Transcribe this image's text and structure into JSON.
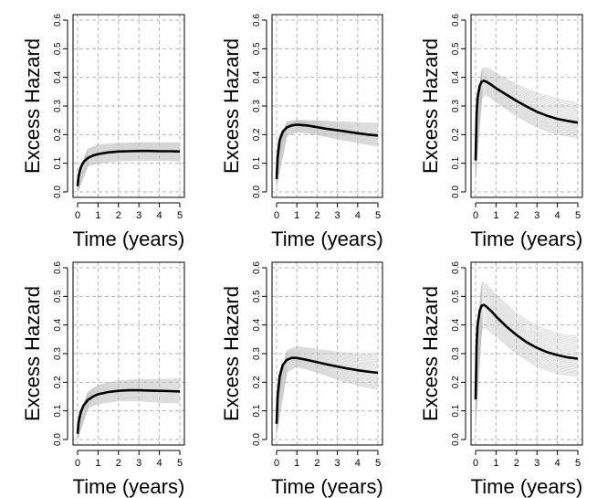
{
  "chart_data": [
    {
      "type": "line",
      "panel": "top-left",
      "xlabel": "Time (years)",
      "ylabel": "Excess Hazard",
      "xlim": [
        0,
        5
      ],
      "ylim": [
        0,
        0.6
      ],
      "x_ticks": [
        "0",
        "1",
        "2",
        "3",
        "4",
        "5"
      ],
      "y_ticks": [
        "0.0",
        "0.1",
        "0.2",
        "0.3",
        "0.4",
        "0.5",
        "0.6"
      ],
      "series": [
        {
          "name": "mean",
          "x": [
            0,
            0.05,
            0.15,
            0.3,
            0.5,
            0.75,
            1,
            1.5,
            2,
            2.5,
            3,
            3.5,
            4,
            4.5,
            5
          ],
          "values": [
            0.02,
            0.055,
            0.085,
            0.105,
            0.118,
            0.127,
            0.132,
            0.138,
            0.141,
            0.142,
            0.143,
            0.143,
            0.142,
            0.142,
            0.141
          ]
        },
        {
          "name": "band-upper",
          "x": [
            0,
            0.5,
            1,
            2,
            3,
            4,
            5
          ],
          "values": [
            0.05,
            0.15,
            0.165,
            0.17,
            0.172,
            0.172,
            0.172
          ]
        },
        {
          "name": "band-lower",
          "x": [
            0,
            0.5,
            1,
            2,
            3,
            4,
            5
          ],
          "values": [
            0.0,
            0.09,
            0.1,
            0.108,
            0.11,
            0.11,
            0.108
          ]
        }
      ]
    },
    {
      "type": "line",
      "panel": "top-middle",
      "xlabel": "Time (years)",
      "ylabel": "Excess Hazard",
      "xlim": [
        0,
        5
      ],
      "ylim": [
        0,
        0.6
      ],
      "x_ticks": [
        "0",
        "1",
        "2",
        "3",
        "4",
        "5"
      ],
      "y_ticks": [
        "0.0",
        "0.1",
        "0.2",
        "0.3",
        "0.4",
        "0.5",
        "0.6"
      ],
      "series": [
        {
          "name": "mean",
          "x": [
            0,
            0.05,
            0.15,
            0.3,
            0.5,
            0.75,
            1,
            1.5,
            2,
            2.5,
            3,
            3.5,
            4,
            4.5,
            5
          ],
          "values": [
            0.045,
            0.12,
            0.18,
            0.21,
            0.225,
            0.232,
            0.235,
            0.232,
            0.226,
            0.22,
            0.215,
            0.21,
            0.205,
            0.2,
            0.197
          ]
        },
        {
          "name": "band-upper",
          "x": [
            0,
            0.5,
            1,
            2,
            3,
            4,
            5
          ],
          "values": [
            0.08,
            0.245,
            0.25,
            0.248,
            0.245,
            0.242,
            0.24
          ]
        },
        {
          "name": "band-lower",
          "x": [
            0,
            0.5,
            1,
            2,
            3,
            4,
            5
          ],
          "values": [
            0.02,
            0.195,
            0.21,
            0.2,
            0.185,
            0.172,
            0.16
          ]
        }
      ]
    },
    {
      "type": "line",
      "panel": "top-right",
      "xlabel": "Time (years)",
      "ylabel": "Excess Hazard",
      "xlim": [
        0,
        5
      ],
      "ylim": [
        0,
        0.6
      ],
      "x_ticks": [
        "0",
        "1",
        "2",
        "3",
        "4",
        "5"
      ],
      "y_ticks": [
        "0.0",
        "0.1",
        "0.2",
        "0.3",
        "0.4",
        "0.5",
        "0.6"
      ],
      "series": [
        {
          "name": "mean",
          "x": [
            0,
            0.05,
            0.1,
            0.2,
            0.3,
            0.4,
            0.5,
            0.75,
            1,
            1.5,
            2,
            2.5,
            3,
            3.5,
            4,
            4.5,
            5
          ],
          "values": [
            0.11,
            0.27,
            0.33,
            0.37,
            0.385,
            0.388,
            0.386,
            0.375,
            0.362,
            0.34,
            0.318,
            0.298,
            0.28,
            0.266,
            0.255,
            0.248,
            0.242
          ]
        },
        {
          "name": "band-upper",
          "x": [
            0,
            0.3,
            0.5,
            1,
            2,
            3,
            4,
            5
          ],
          "values": [
            0.2,
            0.43,
            0.435,
            0.415,
            0.375,
            0.345,
            0.325,
            0.31
          ]
        },
        {
          "name": "band-lower",
          "x": [
            0,
            0.3,
            0.5,
            1,
            2,
            3,
            4,
            5
          ],
          "values": [
            0.05,
            0.33,
            0.34,
            0.315,
            0.265,
            0.225,
            0.2,
            0.19
          ]
        }
      ]
    },
    {
      "type": "line",
      "panel": "bottom-left",
      "xlabel": "Time (years)",
      "ylabel": "Excess Hazard",
      "xlim": [
        0,
        5
      ],
      "ylim": [
        0,
        0.6
      ],
      "x_ticks": [
        "0",
        "1",
        "2",
        "3",
        "4",
        "5"
      ],
      "y_ticks": [
        "0.0",
        "0.1",
        "0.2",
        "0.3",
        "0.4",
        "0.5",
        "0.6"
      ],
      "series": [
        {
          "name": "mean",
          "x": [
            0,
            0.05,
            0.15,
            0.3,
            0.5,
            0.75,
            1,
            1.5,
            2,
            2.5,
            3,
            3.5,
            4,
            4.5,
            5
          ],
          "values": [
            0.02,
            0.06,
            0.095,
            0.12,
            0.138,
            0.15,
            0.158,
            0.166,
            0.17,
            0.172,
            0.172,
            0.171,
            0.17,
            0.169,
            0.168
          ]
        },
        {
          "name": "band-upper",
          "x": [
            0,
            0.5,
            1,
            2,
            3,
            4,
            5
          ],
          "values": [
            0.05,
            0.165,
            0.19,
            0.205,
            0.21,
            0.21,
            0.212
          ]
        },
        {
          "name": "band-lower",
          "x": [
            0,
            0.5,
            1,
            2,
            3,
            4,
            5
          ],
          "values": [
            0.0,
            0.11,
            0.125,
            0.135,
            0.135,
            0.13,
            0.128
          ]
        }
      ]
    },
    {
      "type": "line",
      "panel": "bottom-middle",
      "xlabel": "Time (years)",
      "ylabel": "Excess Hazard",
      "xlim": [
        0,
        5
      ],
      "ylim": [
        0,
        0.6
      ],
      "x_ticks": [
        "0",
        "1",
        "2",
        "3",
        "4",
        "5"
      ],
      "y_ticks": [
        "0.0",
        "0.1",
        "0.2",
        "0.3",
        "0.4",
        "0.5",
        "0.6"
      ],
      "series": [
        {
          "name": "mean",
          "x": [
            0,
            0.05,
            0.15,
            0.3,
            0.5,
            0.75,
            1,
            1.5,
            2,
            2.5,
            3,
            3.5,
            4,
            4.5,
            5
          ],
          "values": [
            0.055,
            0.15,
            0.22,
            0.26,
            0.278,
            0.285,
            0.285,
            0.278,
            0.27,
            0.262,
            0.255,
            0.248,
            0.242,
            0.237,
            0.233
          ]
        },
        {
          "name": "band-upper",
          "x": [
            0,
            0.5,
            1,
            2,
            3,
            4,
            5
          ],
          "values": [
            0.1,
            0.31,
            0.325,
            0.315,
            0.305,
            0.3,
            0.3
          ]
        },
        {
          "name": "band-lower",
          "x": [
            0,
            0.5,
            1,
            2,
            3,
            4,
            5
          ],
          "values": [
            0.02,
            0.235,
            0.255,
            0.235,
            0.21,
            0.19,
            0.175
          ]
        }
      ]
    },
    {
      "type": "line",
      "panel": "bottom-right",
      "xlabel": "Time (years)",
      "ylabel": "Excess Hazard",
      "xlim": [
        0,
        5
      ],
      "ylim": [
        0,
        0.6
      ],
      "x_ticks": [
        "0",
        "1",
        "2",
        "3",
        "4",
        "5"
      ],
      "y_ticks": [
        "0.0",
        "0.1",
        "0.2",
        "0.3",
        "0.4",
        "0.5",
        "0.6"
      ],
      "series": [
        {
          "name": "mean",
          "x": [
            0,
            0.05,
            0.1,
            0.2,
            0.3,
            0.4,
            0.5,
            0.75,
            1,
            1.5,
            2,
            2.5,
            3,
            3.5,
            4,
            4.5,
            5
          ],
          "values": [
            0.14,
            0.33,
            0.4,
            0.45,
            0.468,
            0.47,
            0.466,
            0.45,
            0.43,
            0.395,
            0.365,
            0.34,
            0.32,
            0.305,
            0.295,
            0.287,
            0.282
          ]
        },
        {
          "name": "band-upper",
          "x": [
            0,
            0.3,
            0.5,
            1,
            2,
            3,
            4,
            5
          ],
          "values": [
            0.25,
            0.55,
            0.545,
            0.505,
            0.44,
            0.395,
            0.37,
            0.36
          ]
        },
        {
          "name": "band-lower",
          "x": [
            0,
            0.3,
            0.5,
            1,
            2,
            3,
            4,
            5
          ],
          "values": [
            0.05,
            0.39,
            0.39,
            0.36,
            0.3,
            0.255,
            0.23,
            0.22
          ]
        }
      ]
    }
  ]
}
